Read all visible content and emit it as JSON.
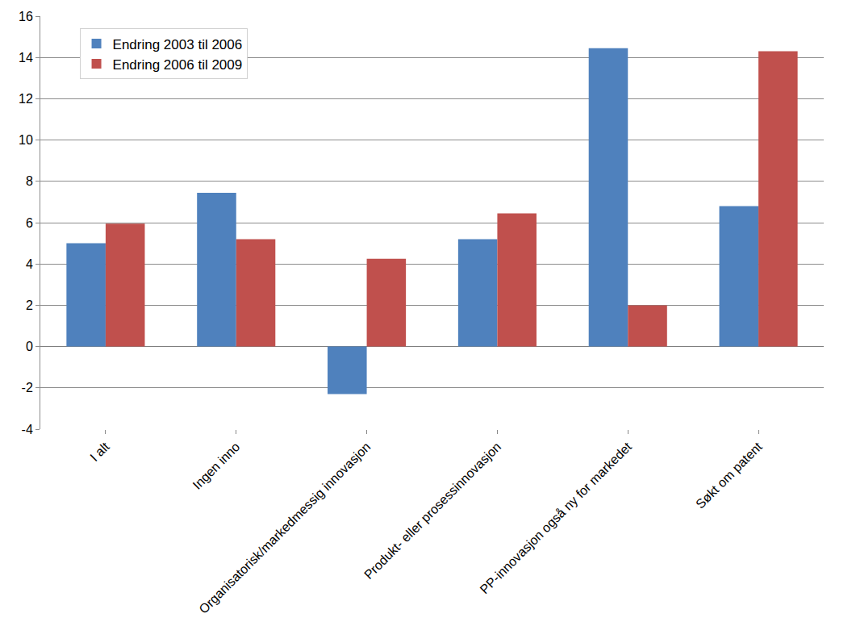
{
  "chart_data": {
    "type": "bar",
    "categories": [
      "I alt",
      "Ingen inno",
      "Organisatorisk/markedmessig innovasjon",
      "Produkt- eller prosessinnovasjon",
      "PP-innovasjon også ny for markedet",
      "Søkt om patent"
    ],
    "series": [
      {
        "name": "Endring 2003 til 2006",
        "color": "#4f81bd",
        "values": [
          5.0,
          7.45,
          -2.3,
          5.2,
          14.45,
          6.8
        ]
      },
      {
        "name": "Endring 2006 til 2009",
        "color": "#c0504d",
        "values": [
          5.95,
          5.2,
          4.25,
          6.45,
          2.0,
          14.3
        ]
      }
    ],
    "ylim": [
      -4,
      16
    ],
    "yticks": [
      -4,
      -2,
      0,
      2,
      4,
      6,
      8,
      10,
      12,
      14,
      16
    ],
    "grid": true,
    "legend": "top-left"
  }
}
